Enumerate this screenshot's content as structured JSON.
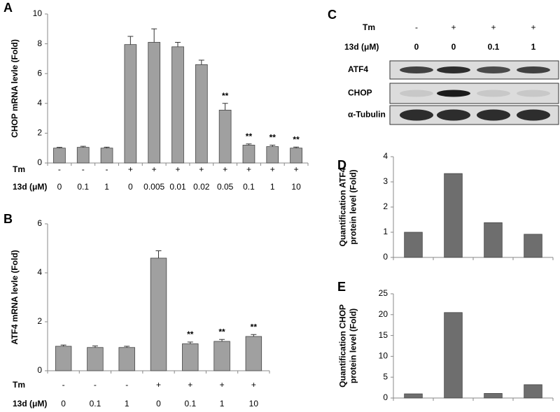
{
  "chart_data": [
    {
      "type": "bar",
      "panel": "A",
      "ylabel": [
        "CHOP mRNA levle (Fold)"
      ],
      "tm_label": "Tm",
      "x_label": "13d (μM)",
      "tm": [
        "-",
        "-",
        "-",
        "+",
        "+",
        "+",
        "+",
        "+",
        "+",
        "+",
        "+"
      ],
      "categories": [
        "0",
        "0.1",
        "1",
        "0",
        "0.005",
        "0.01",
        "0.02",
        "0.05",
        "0.1",
        "1",
        "10"
      ],
      "values": [
        1,
        1.05,
        1,
        7.95,
        8.1,
        7.8,
        6.6,
        3.55,
        1.2,
        1.1,
        1.0
      ],
      "errors": [
        0.05,
        0.07,
        0.06,
        0.55,
        0.9,
        0.3,
        0.3,
        0.45,
        0.08,
        0.1,
        0.07
      ],
      "annotations": [
        null,
        null,
        null,
        null,
        null,
        null,
        null,
        "**",
        "**",
        "**",
        "**"
      ],
      "color": "#a0a0a0",
      "ylim": [
        0,
        10
      ],
      "yticks": [
        0,
        2,
        4,
        6,
        8,
        10
      ]
    },
    {
      "type": "bar",
      "panel": "B",
      "ylabel": [
        "ATF4 mRNA levle (Fold)"
      ],
      "tm_label": "Tm",
      "x_label": "13d (μM)",
      "tm": [
        "-",
        "-",
        "-",
        "+",
        "+",
        "+",
        "+"
      ],
      "categories": [
        "0",
        "0.1",
        "1",
        "0",
        "0.1",
        "1",
        "10"
      ],
      "values": [
        1.0,
        0.95,
        0.95,
        4.6,
        1.1,
        1.2,
        1.4
      ],
      "errors": [
        0.05,
        0.06,
        0.05,
        0.3,
        0.07,
        0.08,
        0.08
      ],
      "annotations": [
        null,
        null,
        null,
        null,
        "**",
        "**",
        "**"
      ],
      "color": "#a0a0a0",
      "ylim": [
        0,
        6
      ],
      "yticks": [
        0,
        2,
        4,
        6
      ]
    },
    {
      "type": "bar",
      "panel": "D",
      "ylabel": [
        "Quantification ATF4",
        "protein level (Fold)"
      ],
      "values": [
        1,
        3.33,
        1.38,
        0.92
      ],
      "color": "#6e6e6e",
      "ylim": [
        0,
        4
      ],
      "yticks": [
        0,
        1,
        2,
        3,
        4
      ]
    },
    {
      "type": "bar",
      "panel": "E",
      "ylabel": [
        "Quantification CHOP",
        "protein level (Fold)"
      ],
      "values": [
        1,
        20.5,
        1.1,
        3.2
      ],
      "color": "#6e6e6e",
      "ylim": [
        0,
        25
      ],
      "yticks": [
        0,
        5,
        10,
        15,
        20,
        25
      ]
    }
  ],
  "blot": {
    "panel": "C",
    "tm_label": "Tm",
    "x_label": "13d (μM)",
    "tm": [
      "-",
      "+",
      "+",
      "+"
    ],
    "doses": [
      "0",
      "0",
      "0.1",
      "1"
    ],
    "rows": [
      "ATF4",
      "CHOP",
      "α-Tubulin"
    ]
  }
}
